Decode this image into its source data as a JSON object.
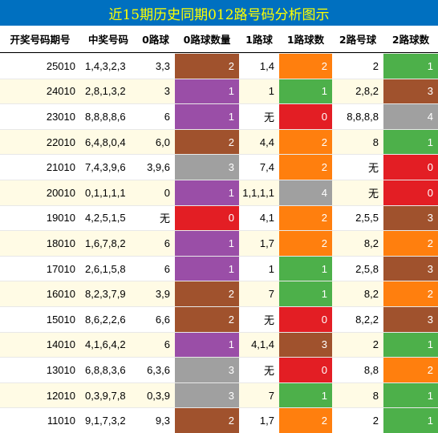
{
  "title": "近15期历史同期012路号码分析图示",
  "headers": [
    "开奖号码期号",
    "中奖号码",
    "0路球",
    "0路球数量",
    "1路球",
    "1路球数",
    "2路号球",
    "2路球数"
  ],
  "count_colors": {
    "0": "#e31e24",
    "1": "#9a4ea7",
    "2": "#a0522d",
    "3": "#a0a0a0",
    "4": "#a0a0a0"
  },
  "count_colors_by_column": {
    "c0": {
      "0": "#e31e24",
      "1": "#9a4ea7",
      "2": "#a0522d",
      "3": "#a0a0a0"
    },
    "c1": {
      "0": "#e31e24",
      "1": "#4db04a",
      "2": "#ff7f0e",
      "3": "#a0522d",
      "4": "#a0a0a0"
    },
    "c2": {
      "0": "#e31e24",
      "1": "#4db04a",
      "2": "#ff7f0e",
      "3": "#a0522d",
      "4": "#a0a0a0"
    }
  },
  "rows": [
    {
      "period": "25010",
      "numbers": "1,4,3,2,3",
      "z0": "3,3",
      "c0": "2",
      "z1": "1,4",
      "c1": "2",
      "z2": "2",
      "c2": "1"
    },
    {
      "period": "24010",
      "numbers": "2,8,1,3,2",
      "z0": "3",
      "c0": "1",
      "z1": "1",
      "c1": "1",
      "z2": "2,8,2",
      "c2": "3"
    },
    {
      "period": "23010",
      "numbers": "8,8,8,8,6",
      "z0": "6",
      "c0": "1",
      "z1": "无",
      "c1": "0",
      "z2": "8,8,8,8",
      "c2": "4"
    },
    {
      "period": "22010",
      "numbers": "6,4,8,0,4",
      "z0": "6,0",
      "c0": "2",
      "z1": "4,4",
      "c1": "2",
      "z2": "8",
      "c2": "1"
    },
    {
      "period": "21010",
      "numbers": "7,4,3,9,6",
      "z0": "3,9,6",
      "c0": "3",
      "z1": "7,4",
      "c1": "2",
      "z2": "无",
      "c2": "0"
    },
    {
      "period": "20010",
      "numbers": "0,1,1,1,1",
      "z0": "0",
      "c0": "1",
      "z1": "1,1,1,1",
      "c1": "4",
      "z2": "无",
      "c2": "0"
    },
    {
      "period": "19010",
      "numbers": "4,2,5,1,5",
      "z0": "无",
      "c0": "0",
      "z1": "4,1",
      "c1": "2",
      "z2": "2,5,5",
      "c2": "3"
    },
    {
      "period": "18010",
      "numbers": "1,6,7,8,2",
      "z0": "6",
      "c0": "1",
      "z1": "1,7",
      "c1": "2",
      "z2": "8,2",
      "c2": "2"
    },
    {
      "period": "17010",
      "numbers": "2,6,1,5,8",
      "z0": "6",
      "c0": "1",
      "z1": "1",
      "c1": "1",
      "z2": "2,5,8",
      "c2": "3"
    },
    {
      "period": "16010",
      "numbers": "8,2,3,7,9",
      "z0": "3,9",
      "c0": "2",
      "z1": "7",
      "c1": "1",
      "z2": "8,2",
      "c2": "2"
    },
    {
      "period": "15010",
      "numbers": "8,6,2,2,6",
      "z0": "6,6",
      "c0": "2",
      "z1": "无",
      "c1": "0",
      "z2": "8,2,2",
      "c2": "3"
    },
    {
      "period": "14010",
      "numbers": "4,1,6,4,2",
      "z0": "6",
      "c0": "1",
      "z1": "4,1,4",
      "c1": "3",
      "z2": "2",
      "c2": "1"
    },
    {
      "period": "13010",
      "numbers": "6,8,8,3,6",
      "z0": "6,3,6",
      "c0": "3",
      "z1": "无",
      "c1": "0",
      "z2": "8,8",
      "c2": "2"
    },
    {
      "period": "12010",
      "numbers": "0,3,9,7,8",
      "z0": "0,3,9",
      "c0": "3",
      "z1": "7",
      "c1": "1",
      "z2": "8",
      "c2": "1"
    },
    {
      "period": "11010",
      "numbers": "9,1,7,3,2",
      "z0": "9,3",
      "c0": "2",
      "z1": "1,7",
      "c1": "2",
      "z2": "2",
      "c2": "1"
    }
  ]
}
